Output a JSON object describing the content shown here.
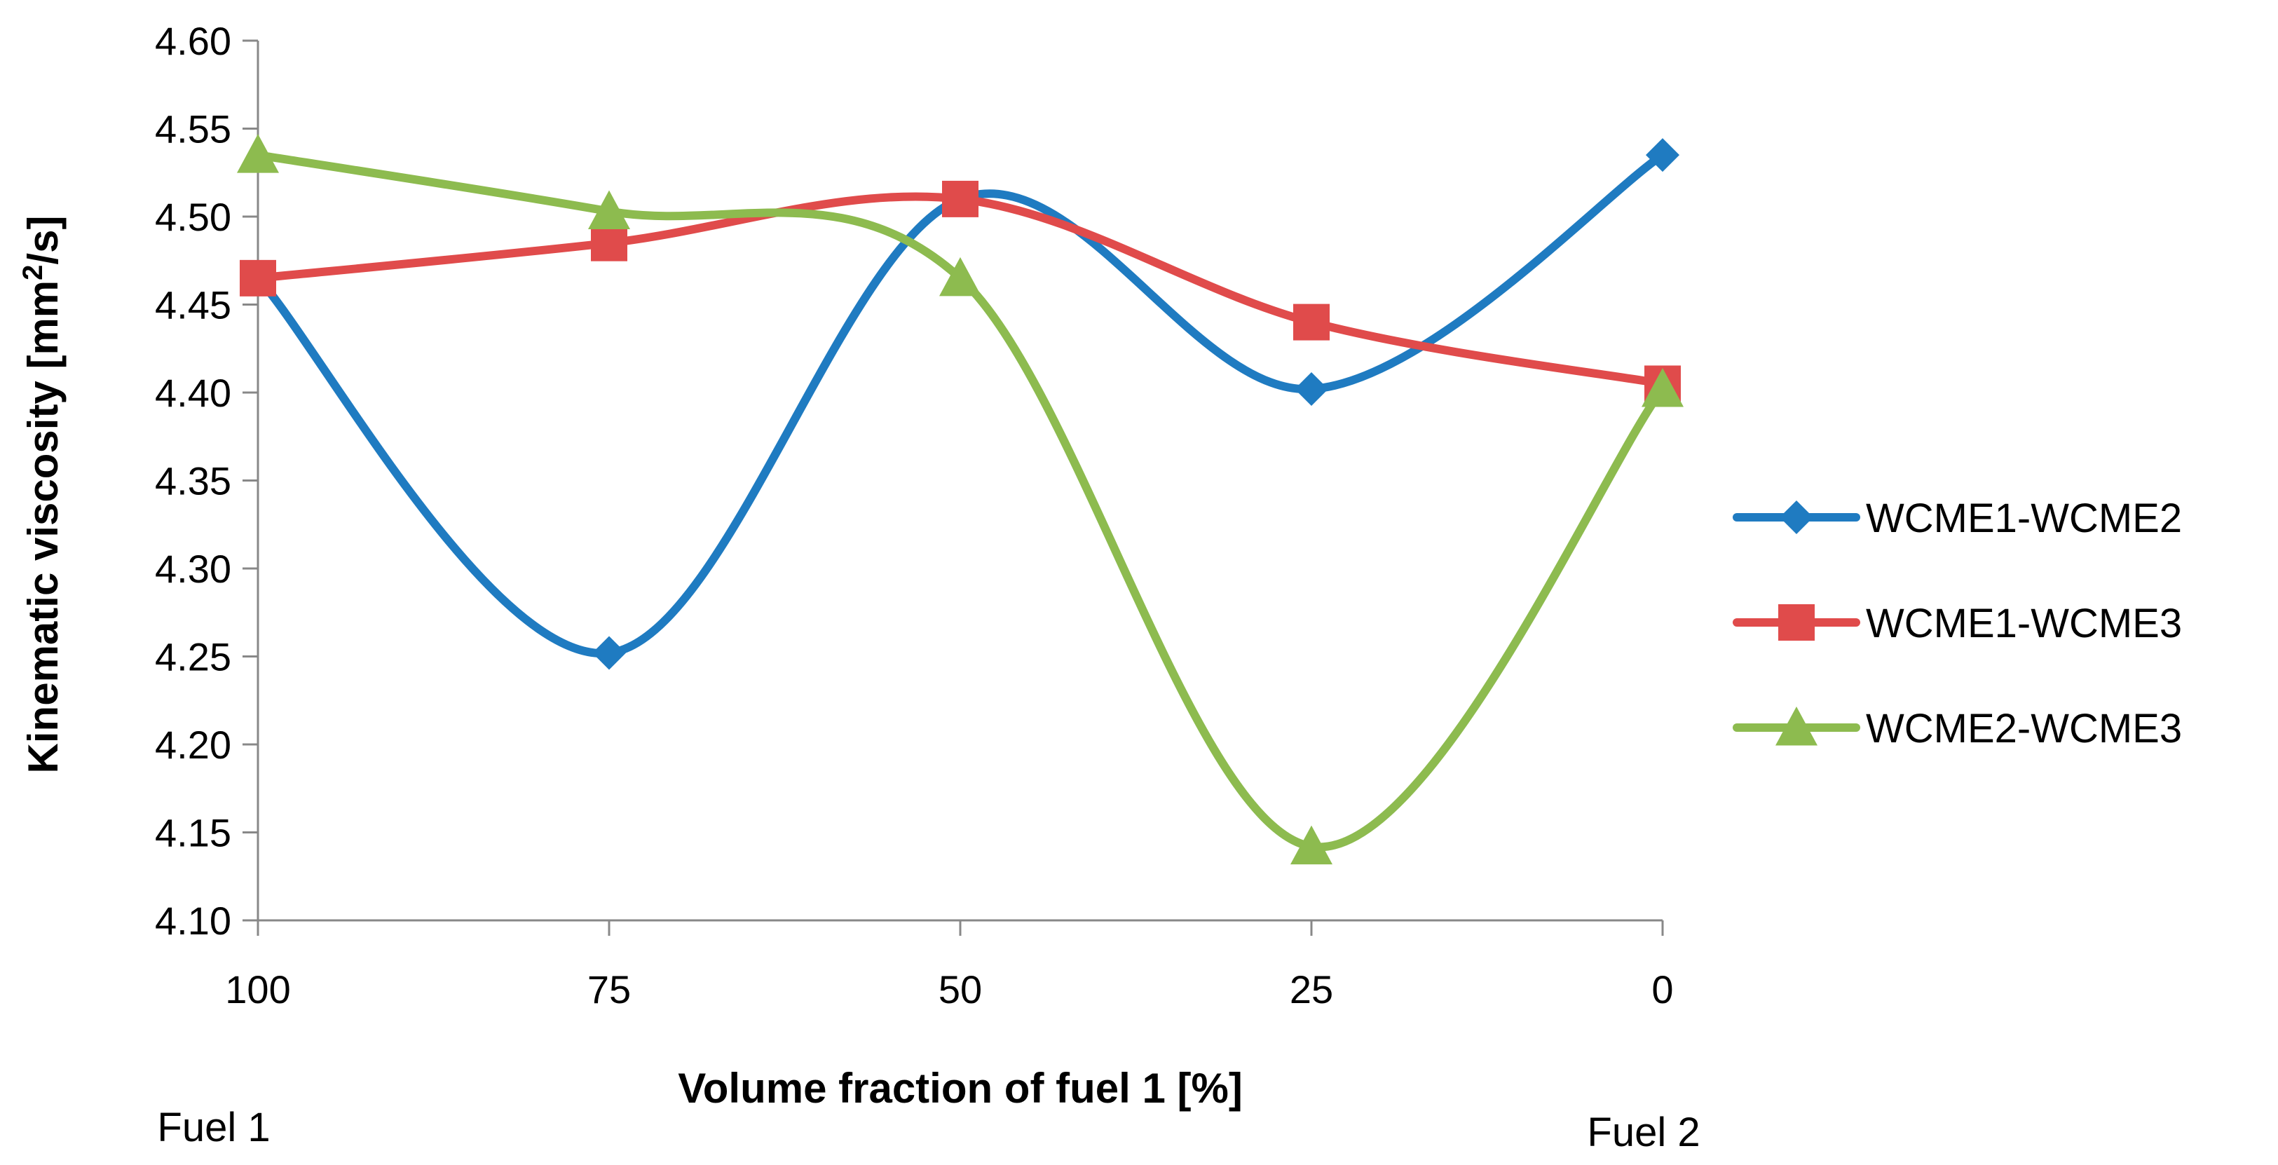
{
  "chart_data": {
    "type": "line",
    "title": "",
    "xlabel": "Volume fraction of fuel 1 [%]",
    "ylabel_parts": {
      "base": "Kinematic viscosity [mm",
      "sup": "2",
      "tail": "/s]"
    },
    "categories": [
      "100",
      "75",
      "50",
      "25",
      "0"
    ],
    "ylim": [
      4.1,
      4.6
    ],
    "yticks": [
      "4.10",
      "4.15",
      "4.20",
      "4.25",
      "4.30",
      "4.35",
      "4.40",
      "4.45",
      "4.50",
      "4.55",
      "4.60"
    ],
    "ytick_values": [
      4.1,
      4.15,
      4.2,
      4.25,
      4.3,
      4.35,
      4.4,
      4.45,
      4.5,
      4.55,
      4.6
    ],
    "smooth": true,
    "grid": false,
    "legend_position": "right",
    "series": [
      {
        "name": "WCME1-WCME2",
        "values": [
          4.465,
          4.252,
          4.51,
          4.402,
          4.535
        ],
        "color": "#1F7BC1",
        "marker": "diamond"
      },
      {
        "name": "WCME1-WCME3",
        "values": [
          4.465,
          4.485,
          4.51,
          4.44,
          4.405
        ],
        "color": "#E04B4B",
        "marker": "square"
      },
      {
        "name": "WCME2-WCME3",
        "values": [
          4.535,
          4.503,
          4.465,
          4.142,
          4.402
        ],
        "color": "#8DBB4F",
        "marker": "triangle"
      }
    ],
    "annotations": {
      "left": "Fuel 1",
      "right": "Fuel 2"
    }
  }
}
